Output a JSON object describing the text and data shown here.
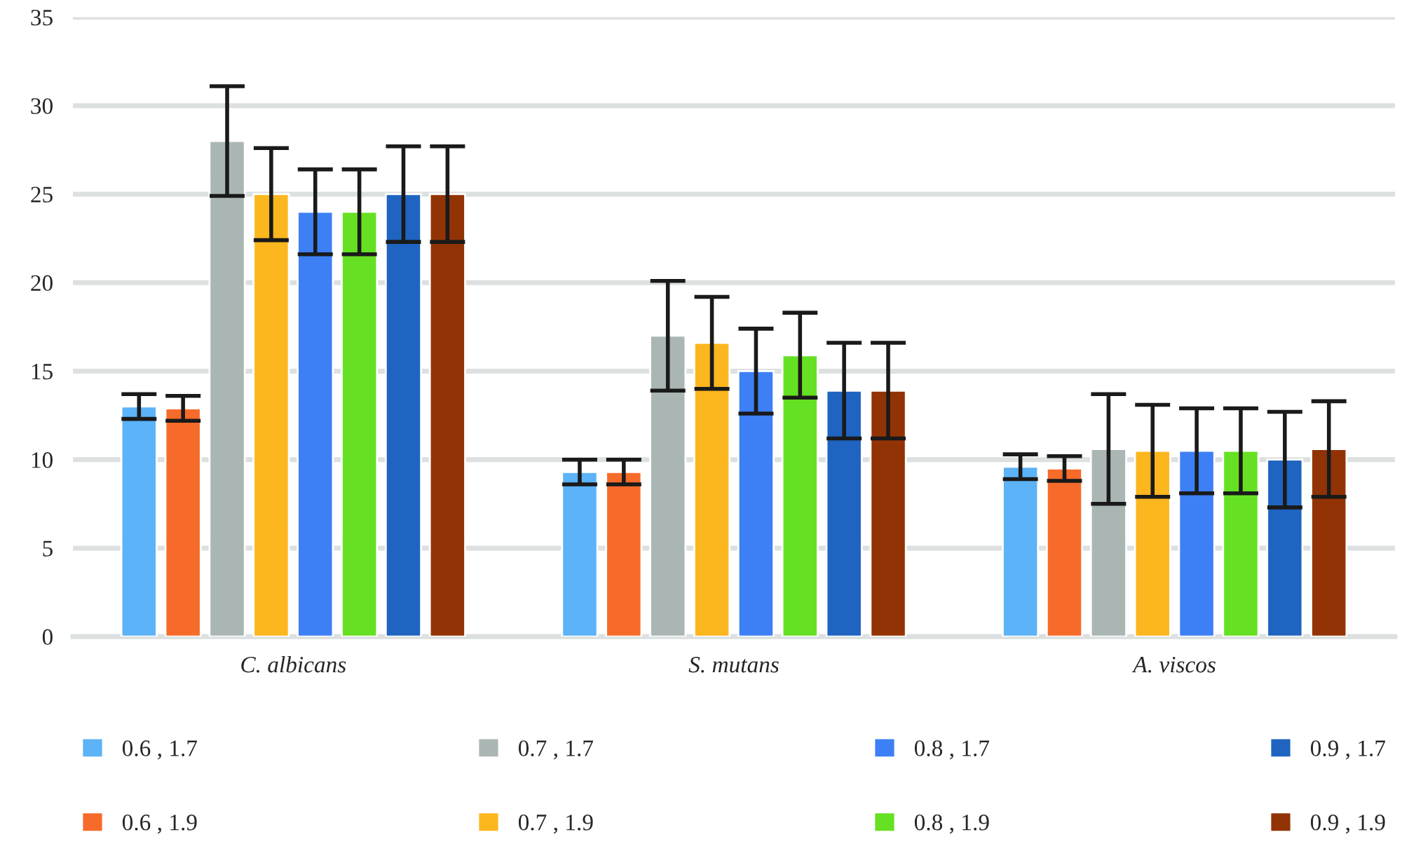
{
  "chart_data": {
    "type": "bar",
    "categories": [
      "C. albicans",
      "S. mutans",
      "A. viscos"
    ],
    "series": [
      {
        "name": "0.6 , 1.7",
        "color": "#5cb3f7",
        "values": [
          13,
          9.3,
          9.6
        ],
        "errors": [
          0.7,
          0.7,
          0.7
        ]
      },
      {
        "name": "0.6 , 1.9",
        "color": "#f76b2a",
        "values": [
          12.9,
          9.3,
          9.5
        ],
        "errors": [
          0.7,
          0.7,
          0.7
        ]
      },
      {
        "name": "0.7 , 1.7",
        "color": "#aab6b4",
        "values": [
          28,
          17,
          10.6
        ],
        "errors": [
          3.1,
          3.1,
          3.1
        ]
      },
      {
        "name": "0.7 , 1.9",
        "color": "#fcb61e",
        "values": [
          25,
          16.6,
          10.5
        ],
        "errors": [
          2.6,
          2.6,
          2.6
        ]
      },
      {
        "name": "0.8 , 1.7",
        "color": "#3d7ff5",
        "values": [
          24,
          15,
          10.5
        ],
        "errors": [
          2.4,
          2.4,
          2.4
        ]
      },
      {
        "name": "0.8 , 1.9",
        "color": "#66e023",
        "values": [
          24,
          15.9,
          10.5
        ],
        "errors": [
          2.4,
          2.4,
          2.4
        ]
      },
      {
        "name": "0.9 , 1.7",
        "color": "#1f64c0",
        "values": [
          25,
          13.9,
          10
        ],
        "errors": [
          2.7,
          2.7,
          2.7
        ]
      },
      {
        "name": "0.9 , 1.9",
        "color": "#923305",
        "values": [
          25,
          13.9,
          10.6
        ],
        "errors": [
          2.7,
          2.7,
          2.7
        ]
      }
    ],
    "ylim": [
      0,
      35
    ],
    "yticks": [
      0,
      5,
      10,
      15,
      20,
      25,
      30,
      35
    ],
    "grid": "y",
    "legend": "bottom"
  }
}
